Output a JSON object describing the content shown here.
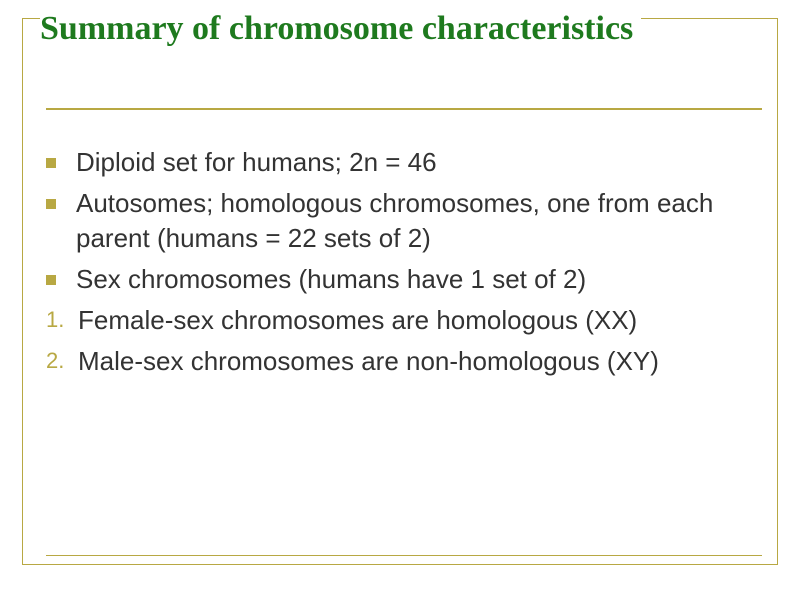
{
  "slide": {
    "title": "Summary of chromosome characteristics",
    "title_color": "#1e7a1e",
    "title_fontsize": 34,
    "border_color": "#b8a843",
    "background_color": "#ffffff",
    "body_text_color": "#333333",
    "body_fontsize": 26,
    "bullets": [
      {
        "text": "Diploid set for humans; 2n = 46"
      },
      {
        "text": "Autosomes; homologous chromosomes, one from each parent (humans = 22 sets of 2)"
      },
      {
        "text": "Sex chromosomes (humans have 1 set of 2)"
      }
    ],
    "numbered": [
      {
        "num": "1.",
        "text": "Female-sex chromosomes are homologous (XX)"
      },
      {
        "num": "2.",
        "text": "Male-sex chromosomes are non-homologous (XY)"
      }
    ]
  }
}
